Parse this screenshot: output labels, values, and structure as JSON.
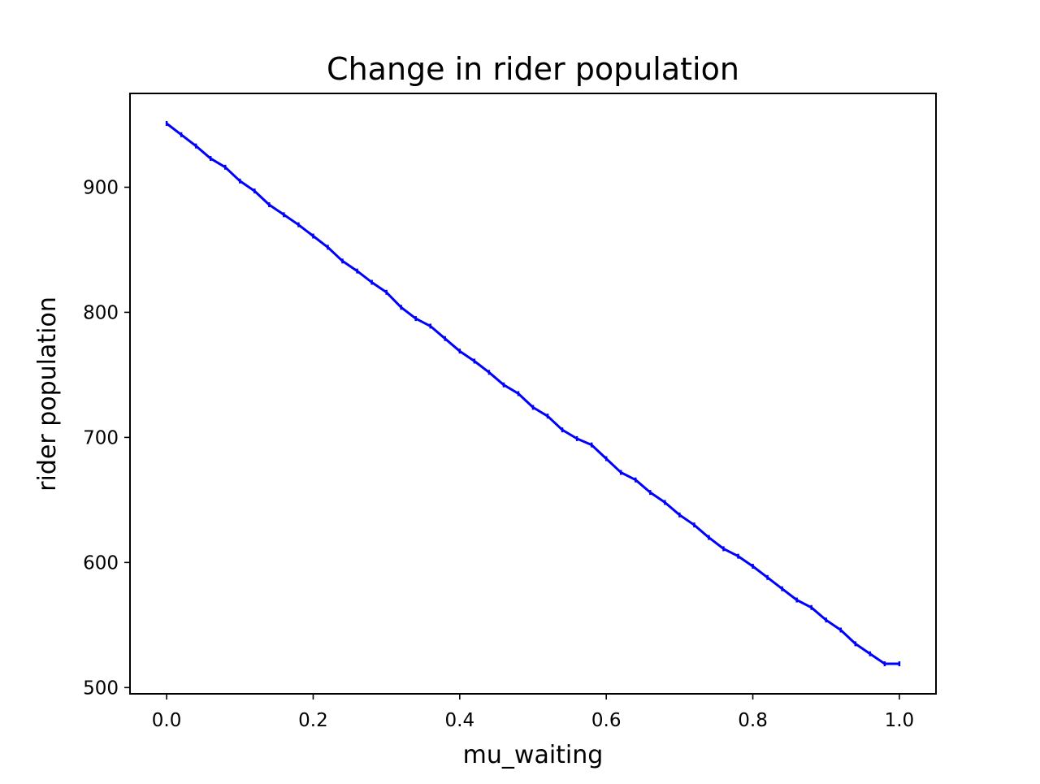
{
  "chart_data": {
    "type": "line",
    "title": "Change in rider population",
    "xlabel": "mu_waiting",
    "ylabel": "rider population",
    "xlim": [
      -0.05,
      1.05
    ],
    "ylim": [
      495,
      975
    ],
    "xticks": [
      0.0,
      0.2,
      0.4,
      0.6,
      0.8,
      1.0
    ],
    "xtick_labels": [
      "0.0",
      "0.2",
      "0.4",
      "0.6",
      "0.8",
      "1.0"
    ],
    "yticks": [
      500,
      600,
      700,
      800,
      900
    ],
    "ytick_labels": [
      "500",
      "600",
      "700",
      "800",
      "900"
    ],
    "grid": false,
    "legend": null,
    "series": [
      {
        "color": "#0000ff",
        "marker": "error-bar",
        "x": [
          0.0,
          0.02,
          0.04,
          0.06,
          0.08,
          0.1,
          0.12,
          0.14,
          0.16,
          0.18,
          0.2,
          0.22,
          0.24,
          0.26,
          0.28,
          0.3,
          0.32,
          0.34,
          0.36,
          0.38,
          0.4,
          0.42,
          0.44,
          0.46,
          0.48,
          0.5,
          0.52,
          0.54,
          0.56,
          0.58,
          0.6,
          0.62,
          0.64,
          0.66,
          0.68,
          0.7,
          0.72,
          0.74,
          0.76,
          0.78,
          0.8,
          0.82,
          0.84,
          0.86,
          0.88,
          0.9,
          0.92,
          0.94,
          0.96,
          0.98,
          1.0
        ],
        "y": [
          951,
          942,
          933,
          923,
          916,
          905,
          897,
          886,
          878,
          870,
          861,
          852,
          841,
          833,
          824,
          816,
          804,
          795,
          789,
          779,
          769,
          761,
          752,
          742,
          735,
          724,
          717,
          706,
          699,
          694,
          683,
          672,
          666,
          656,
          648,
          638,
          630,
          620,
          611,
          605,
          597,
          588,
          579,
          570,
          564,
          554,
          546,
          535,
          527,
          519,
          519
        ]
      }
    ]
  }
}
